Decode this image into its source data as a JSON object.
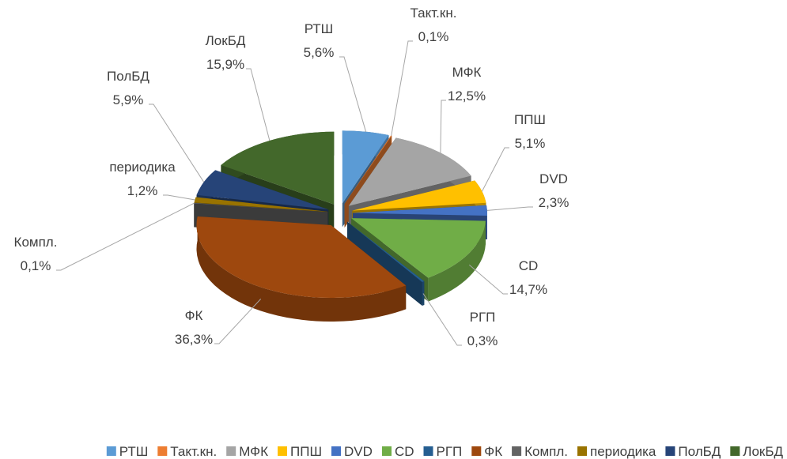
{
  "chart_data": {
    "type": "pie3d",
    "categories": [
      "РТШ",
      "Такт.кн.",
      "МФК",
      "ППШ",
      "DVD",
      "CD",
      "РГП",
      "ФК",
      "Компл.",
      "периодика",
      "ПолБД",
      "ЛокБД"
    ],
    "values": [
      5.6,
      0.1,
      12.5,
      5.1,
      2.3,
      14.7,
      0.3,
      36.3,
      0.1,
      1.2,
      5.9,
      15.9
    ],
    "value_labels": [
      "5,6%",
      "0,1%",
      "12,5%",
      "5,1%",
      "2,3%",
      "14,7%",
      "0,3%",
      "36,3%",
      "0,1%",
      "1,2%",
      "5,9%",
      "15,9%"
    ],
    "colors": [
      "#5b9bd5",
      "#ed7d31",
      "#a5a5a5",
      "#ffc000",
      "#4472c4",
      "#70ad47",
      "#255e91",
      "#9e480e",
      "#636363",
      "#997300",
      "#264478",
      "#43682b"
    ],
    "legend": "bottom"
  }
}
